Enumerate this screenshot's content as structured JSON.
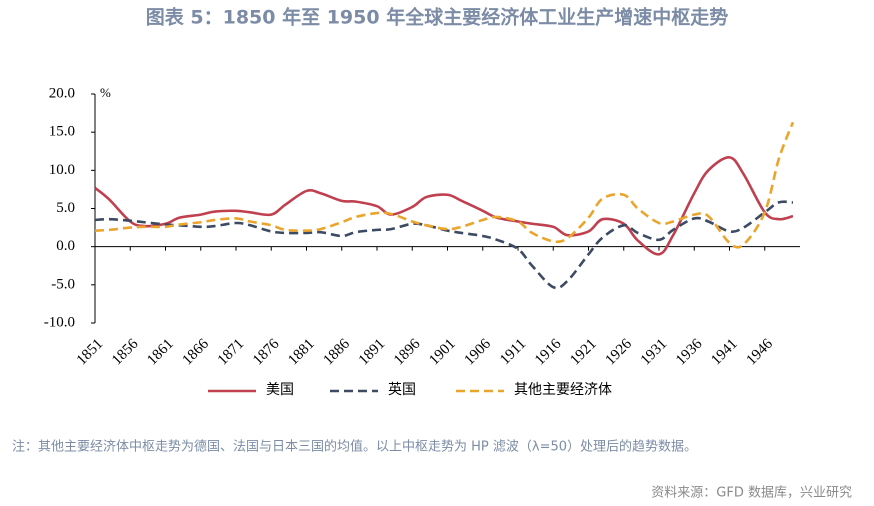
{
  "chart_data": {
    "type": "line",
    "title": "图表 5：1850 年至 1950 年全球主要经济体工业生产增速中枢走势",
    "y_unit": "%",
    "x": [
      1851,
      1853,
      1856,
      1858,
      1861,
      1863,
      1866,
      1868,
      1871,
      1873,
      1876,
      1878,
      1881,
      1883,
      1886,
      1888,
      1891,
      1893,
      1896,
      1898,
      1901,
      1903,
      1906,
      1908,
      1911,
      1913,
      1916,
      1918,
      1921,
      1923,
      1926,
      1928,
      1931,
      1933,
      1936,
      1938,
      1941,
      1943,
      1946,
      1948,
      1950
    ],
    "series": [
      {
        "name": "美国",
        "color": "#c0404f",
        "dash": "solid",
        "values": [
          7.7,
          6.2,
          3.3,
          2.7,
          3.0,
          3.8,
          4.2,
          4.6,
          4.7,
          4.5,
          4.2,
          5.5,
          7.3,
          7.0,
          6.0,
          5.9,
          5.3,
          4.2,
          5.2,
          6.5,
          6.8,
          6.0,
          4.7,
          3.8,
          3.3,
          3.0,
          2.6,
          1.5,
          2.0,
          3.6,
          3.0,
          0.8,
          -1.0,
          1.5,
          7.0,
          10.0,
          11.7,
          9.5,
          4.5,
          3.6,
          4.0
        ]
      },
      {
        "name": "英国",
        "color": "#3d4a63",
        "dash": "dashed",
        "values": [
          3.5,
          3.6,
          3.4,
          3.2,
          2.9,
          2.8,
          2.6,
          2.7,
          3.1,
          2.8,
          2.0,
          1.8,
          1.8,
          1.9,
          1.4,
          1.9,
          2.2,
          2.3,
          3.0,
          2.8,
          2.1,
          1.8,
          1.4,
          0.9,
          -0.3,
          -2.5,
          -5.3,
          -4.5,
          -1.0,
          1.2,
          2.8,
          1.8,
          0.9,
          2.2,
          3.7,
          3.3,
          2.0,
          2.5,
          4.5,
          5.8,
          5.8
        ]
      },
      {
        "name": "其他主要经济体",
        "color": "#eba42c",
        "dash": "dashed",
        "values": [
          2.1,
          2.2,
          2.5,
          2.6,
          2.6,
          2.9,
          3.2,
          3.5,
          3.7,
          3.3,
          2.8,
          2.2,
          2.1,
          2.3,
          3.2,
          3.9,
          4.4,
          4.3,
          3.3,
          2.8,
          2.3,
          2.6,
          3.5,
          3.9,
          3.3,
          1.8,
          0.7,
          1.1,
          3.8,
          6.3,
          6.8,
          5.0,
          3.1,
          3.3,
          4.2,
          4.0,
          0.5,
          0.3,
          4.5,
          11.5,
          16.3
        ]
      }
    ],
    "xlim": [
      1851,
      1951
    ],
    "xticks": [
      1851,
      1856,
      1861,
      1866,
      1871,
      1876,
      1881,
      1886,
      1891,
      1896,
      1901,
      1906,
      1911,
      1916,
      1921,
      1926,
      1931,
      1936,
      1941,
      1946
    ],
    "ylim": [
      -10,
      20
    ],
    "yticks": [
      {
        "value": -10,
        "label": "-10.0"
      },
      {
        "value": -5,
        "label": "-5.0"
      },
      {
        "value": 0,
        "label": "0.0"
      },
      {
        "value": 5,
        "label": "5.0"
      },
      {
        "value": 10,
        "label": "10.0"
      },
      {
        "value": 15,
        "label": "15.0"
      },
      {
        "value": 20,
        "label": "20.0"
      }
    ],
    "legend": "bottom",
    "note": "注：其他主要经济体中枢走势为德国、法国与日本三国的均值。以上中枢走势为 HP 滤波（λ=50）处理后的趋势数据。",
    "source": "资料来源：GFD 数据库，兴业研究"
  }
}
